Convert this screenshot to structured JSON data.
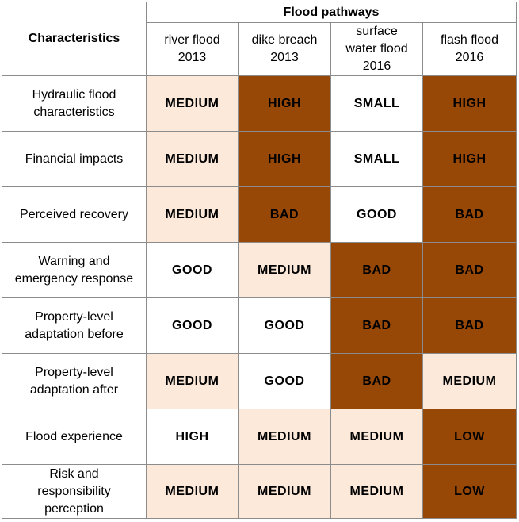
{
  "header": {
    "characteristics": "Characteristics",
    "group": "Flood pathways",
    "columns": [
      "river flood\n2013",
      "dike breach\n2013",
      "surface\nwater flood\n2016",
      "flash flood\n2016"
    ]
  },
  "rows": [
    {
      "label": "Hydraulic flood\ncharacteristics",
      "cells": [
        "MEDIUM",
        "HIGH",
        "SMALL",
        "HIGH"
      ],
      "colors": [
        "#fde9d9",
        "#974706",
        "#ffffff",
        "#974706"
      ]
    },
    {
      "label": "Financial impacts",
      "cells": [
        "MEDIUM",
        "HIGH",
        "SMALL",
        "HIGH"
      ],
      "colors": [
        "#fde9d9",
        "#974706",
        "#ffffff",
        "#974706"
      ]
    },
    {
      "label": "Perceived recovery",
      "cells": [
        "MEDIUM",
        "BAD",
        "GOOD",
        "BAD"
      ],
      "colors": [
        "#fde9d9",
        "#974706",
        "#ffffff",
        "#974706"
      ]
    },
    {
      "label": "Warning and\nemergency response",
      "cells": [
        "GOOD",
        "MEDIUM",
        "BAD",
        "BAD"
      ],
      "colors": [
        "#ffffff",
        "#fde9d9",
        "#974706",
        "#974706"
      ]
    },
    {
      "label": "Property-level\nadaptation before",
      "cells": [
        "GOOD",
        "GOOD",
        "BAD",
        "BAD"
      ],
      "colors": [
        "#ffffff",
        "#ffffff",
        "#974706",
        "#974706"
      ]
    },
    {
      "label": "Property-level\nadaptation after",
      "cells": [
        "MEDIUM",
        "GOOD",
        "BAD",
        "MEDIUM"
      ],
      "colors": [
        "#fde9d9",
        "#ffffff",
        "#974706",
        "#fde9d9"
      ]
    },
    {
      "label": "Flood experience",
      "cells": [
        "HIGH",
        "MEDIUM",
        "MEDIUM",
        "LOW"
      ],
      "colors": [
        "#ffffff",
        "#fde9d9",
        "#fde9d9",
        "#974706"
      ]
    },
    {
      "label": "Risk and\nresponsibility\nperception",
      "cells": [
        "MEDIUM",
        "MEDIUM",
        "MEDIUM",
        "LOW"
      ],
      "colors": [
        "#fde9d9",
        "#fde9d9",
        "#fde9d9",
        "#974706"
      ]
    }
  ]
}
